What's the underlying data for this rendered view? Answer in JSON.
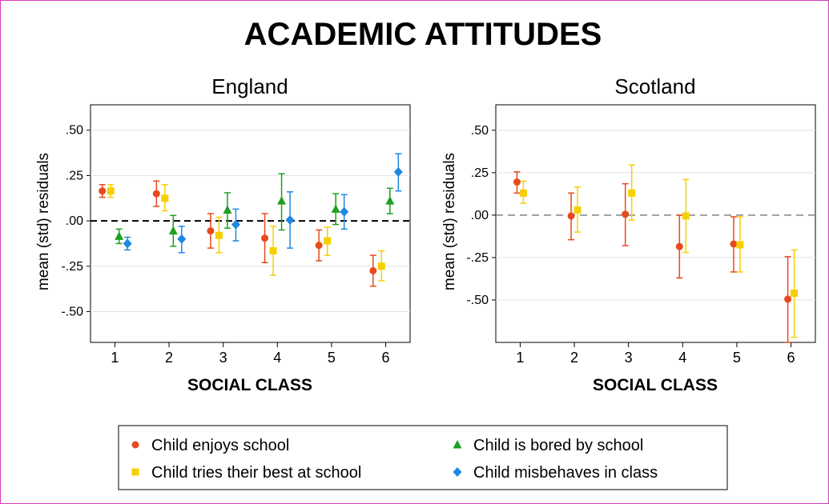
{
  "figure": {
    "title": "ACADEMIC ATTITUDES"
  },
  "colors": {
    "enjoys": "#e8491d",
    "tries": "#f5d000",
    "bored": "#1ea01e",
    "misbehaves": "#1e88e5",
    "grid": "#e3e3e3",
    "refline": "#000000"
  },
  "legend": {
    "items": [
      {
        "key": "enjoys",
        "label": "Child enjoys school",
        "marker": "circle"
      },
      {
        "key": "bored",
        "label": "Child is bored by school",
        "marker": "triangle"
      },
      {
        "key": "tries",
        "label": "Child tries their best at school",
        "marker": "square"
      },
      {
        "key": "misbehaves",
        "label": "Child misbehaves in class",
        "marker": "diamond"
      }
    ]
  },
  "chart_data": [
    {
      "type": "scatter",
      "title": "England",
      "xlabel": "SOCIAL CLASS",
      "ylabel": "mean (std) residuals",
      "categories": [
        "1",
        "2",
        "3",
        "4",
        "5",
        "6"
      ],
      "xlim": [
        0.55,
        6.45
      ],
      "ylim": [
        -0.67,
        0.64
      ],
      "yticks": [
        0.5,
        0.25,
        0.0,
        -0.25,
        -0.5
      ],
      "ytick_labels": [
        ".50",
        ".25",
        ".00",
        "-.25",
        "-.50"
      ],
      "reference_line": {
        "y": 0,
        "style": "dashed",
        "weight": "heavy"
      },
      "grid": true,
      "series": [
        {
          "name": "Child enjoys school",
          "key": "enjoys",
          "marker": "circle",
          "values": [
            0.165,
            0.15,
            -0.055,
            -0.095,
            -0.135,
            -0.275
          ],
          "lower": [
            0.13,
            0.08,
            -0.15,
            -0.23,
            -0.22,
            -0.36
          ],
          "upper": [
            0.2,
            0.22,
            0.04,
            0.04,
            -0.05,
            -0.19
          ]
        },
        {
          "name": "Child tries their best at school",
          "key": "tries",
          "marker": "square",
          "values": [
            0.165,
            0.125,
            -0.08,
            -0.165,
            -0.11,
            -0.25
          ],
          "lower": [
            0.13,
            0.055,
            -0.175,
            -0.3,
            -0.19,
            -0.33
          ],
          "upper": [
            0.2,
            0.2,
            0.02,
            -0.03,
            -0.035,
            -0.165
          ]
        },
        {
          "name": "Child is bored by school",
          "key": "bored",
          "marker": "triangle",
          "values": [
            -0.085,
            -0.055,
            0.06,
            0.11,
            0.065,
            0.11
          ],
          "lower": [
            -0.125,
            -0.14,
            -0.04,
            -0.05,
            -0.02,
            0.04
          ],
          "upper": [
            -0.045,
            0.03,
            0.155,
            0.26,
            0.15,
            0.18
          ]
        },
        {
          "name": "Child misbehaves in class",
          "key": "misbehaves",
          "marker": "diamond",
          "values": [
            -0.125,
            -0.1,
            -0.02,
            0.005,
            0.05,
            0.27
          ],
          "lower": [
            -0.16,
            -0.175,
            -0.11,
            -0.15,
            -0.045,
            0.165
          ],
          "upper": [
            -0.09,
            -0.03,
            0.065,
            0.16,
            0.145,
            0.37
          ]
        }
      ]
    },
    {
      "type": "scatter",
      "title": "Scotland",
      "xlabel": "SOCIAL CLASS",
      "ylabel": "mean (std) residuals",
      "categories": [
        "1",
        "2",
        "3",
        "4",
        "5",
        "6"
      ],
      "xlim": [
        0.55,
        6.45
      ],
      "ylim": [
        -0.75,
        0.65
      ],
      "yticks": [
        0.5,
        0.25,
        0.0,
        -0.25,
        -0.5
      ],
      "ytick_labels": [
        ".50",
        ".25",
        ".00",
        "-.25",
        "-.50"
      ],
      "reference_line": {
        "y": 0,
        "style": "dashed",
        "weight": "light"
      },
      "grid": true,
      "series": [
        {
          "name": "Child enjoys school",
          "key": "enjoys",
          "marker": "circle",
          "values": [
            0.195,
            -0.005,
            0.005,
            -0.185,
            -0.17,
            -0.495
          ],
          "lower": [
            0.13,
            -0.145,
            -0.18,
            -0.37,
            -0.335,
            -0.75
          ],
          "upper": [
            0.255,
            0.13,
            0.185,
            0.0,
            -0.01,
            -0.245
          ]
        },
        {
          "name": "Child tries their best at school",
          "key": "tries",
          "marker": "square",
          "values": [
            0.13,
            0.03,
            0.13,
            -0.005,
            -0.175,
            -0.46
          ],
          "lower": [
            0.07,
            -0.1,
            -0.03,
            -0.22,
            -0.335,
            -0.72
          ],
          "upper": [
            0.2,
            0.165,
            0.295,
            0.21,
            -0.01,
            -0.205
          ]
        }
      ]
    }
  ]
}
